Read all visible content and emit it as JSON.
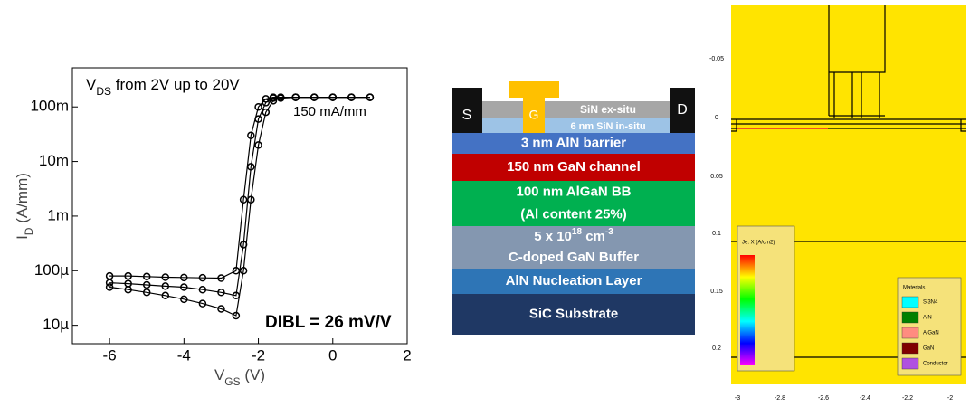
{
  "chart_data": {
    "type": "line",
    "condition": [
      "V",
      "DS",
      " from 2V up to 20V"
    ],
    "xlabel": [
      "V",
      "GS",
      " (V)"
    ],
    "ylabel": [
      "I",
      "D",
      " (A/mm)"
    ],
    "annotations": [
      "150 mA/mm",
      "DIBL = 26 mV/V"
    ],
    "x": [
      -6,
      -5.5,
      -5,
      -4.5,
      -4,
      -3.5,
      -3,
      -2.6,
      -2.4,
      -2.2,
      -2.0,
      -1.8,
      -1.6,
      -1.4,
      -1,
      -0.5,
      0,
      0.5,
      1
    ],
    "series": [
      {
        "color": "#000000",
        "values": [
          8e-05,
          8e-05,
          7.8e-05,
          7.6e-05,
          7.5e-05,
          7.4e-05,
          7.3e-05,
          0.0001,
          0.002,
          0.03,
          0.1,
          0.14,
          0.15,
          0.15,
          0.15,
          0.15,
          0.15,
          0.15,
          0.15
        ]
      },
      {
        "color": "#000000",
        "values": [
          6e-05,
          5.8e-05,
          5.5e-05,
          5.2e-05,
          5e-05,
          4.5e-05,
          4e-05,
          3.5e-05,
          0.0003,
          0.008,
          0.06,
          0.12,
          0.145,
          0.15,
          0.15,
          0.15,
          0.15,
          0.15,
          0.15
        ]
      },
      {
        "color": "#000000",
        "values": [
          5e-05,
          4.5e-05,
          4e-05,
          3.5e-05,
          3e-05,
          2.5e-05,
          2e-05,
          1.5e-05,
          0.0001,
          0.002,
          0.02,
          0.08,
          0.13,
          0.145,
          0.15,
          0.15,
          0.15,
          0.15,
          0.15
        ]
      }
    ],
    "log_y": true,
    "xlim": [
      -7,
      2
    ],
    "xticks": [
      -6,
      -4,
      -2,
      0,
      2
    ],
    "ylim": [
      4.6e-06,
      0.52
    ],
    "yticks": [
      {
        "value": 1e-05,
        "label": "10µ"
      },
      {
        "value": 0.0001,
        "label": "100µ"
      },
      {
        "value": 0.001,
        "label": "1m"
      },
      {
        "value": 0.01,
        "label": "10m"
      },
      {
        "value": 0.1,
        "label": "100m"
      }
    ]
  },
  "layer_stack": {
    "contacts": {
      "source": "S",
      "gate": "G",
      "drain": "D"
    },
    "passivation": [
      "SiN ex-situ",
      "6 nm SiN in-situ"
    ],
    "layers": [
      {
        "color": "#4472c4",
        "lines": [
          "3 nm AlN barrier"
        ]
      },
      {
        "color": "#c00000",
        "lines": [
          "150 nm GaN channel"
        ]
      },
      {
        "color": "#00b050",
        "lines": [
          "100 nm AlGaN BB",
          "(Al content 25%)"
        ]
      },
      {
        "color": "#8497b0",
        "lines": [
          [
            "5 x 10",
            "18",
            "  cm",
            "-3"
          ],
          "C-doped GaN Buffer"
        ]
      },
      {
        "color": "#2e75b6",
        "lines": [
          "AlN Nucleation Layer"
        ]
      },
      {
        "color": "#1f3864",
        "lines": [
          "SiC Substrate"
        ]
      }
    ]
  },
  "simulation": {
    "yticks": [
      "-0.05",
      "0",
      "0.05",
      "0.1",
      "0.15",
      "0.2"
    ],
    "xticks": [
      "-3",
      "-2.8",
      "-2.6",
      "-2.4",
      "-2.2",
      "-2"
    ],
    "colorbar_title": "Je: X (A/cm2)",
    "legend_title": "Materials",
    "materials": [
      {
        "label": "Si3N4",
        "color": "#00ffff"
      },
      {
        "label": "AlN",
        "color": "#008000"
      },
      {
        "label": "AlGaN",
        "color": "#ff8c80"
      },
      {
        "label": "GaN",
        "color": "#800000"
      },
      {
        "label": "Conductor",
        "color": "#b050e0"
      }
    ]
  }
}
